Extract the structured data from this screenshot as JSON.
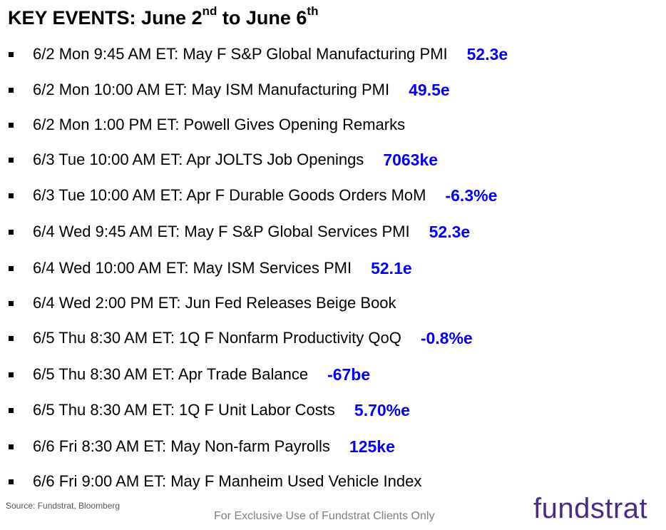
{
  "header": {
    "title_part1": "KEY EVENTS: June 2",
    "title_sup1": "nd",
    "title_part2": " to June 6",
    "title_sup2": "th"
  },
  "events": [
    {
      "text": "6/2 Mon 9:45 AM ET: May F S&P Global Manufacturing PMI",
      "value": "52.3e"
    },
    {
      "text": "6/2 Mon 10:00 AM ET: May ISM Manufacturing PMI",
      "value": "49.5e"
    },
    {
      "text": "6/2 Mon 1:00 PM ET: Powell Gives Opening Remarks",
      "value": ""
    },
    {
      "text": "6/3 Tue 10:00 AM ET: Apr JOLTS Job Openings",
      "value": "7063ke"
    },
    {
      "text": "6/3 Tue 10:00 AM ET: Apr F Durable Goods Orders MoM",
      "value": "-6.3%e"
    },
    {
      "text": "6/4 Wed 9:45 AM ET: May F S&P Global Services PMI",
      "value": "52.3e"
    },
    {
      "text": "6/4 Wed 10:00 AM ET: May ISM Services PMI",
      "value": "52.1e"
    },
    {
      "text": "6/4 Wed 2:00 PM ET: Jun Fed Releases Beige Book",
      "value": ""
    },
    {
      "text": "6/5 Thu 8:30 AM ET: 1Q F Nonfarm Productivity QoQ",
      "value": "-0.8%e"
    },
    {
      "text": "6/5 Thu 8:30 AM ET: Apr Trade Balance",
      "value": "-67be"
    },
    {
      "text": "6/5 Thu 8:30 AM ET: 1Q F Unit Labor Costs",
      "value": "5.70%e"
    },
    {
      "text": "6/6 Fri 8:30 AM ET: May Non-farm Payrolls",
      "value": "125ke"
    },
    {
      "text": "6/6 Fri 9:00 AM ET: May F Manheim Used Vehicle Index",
      "value": ""
    }
  ],
  "footer": {
    "source": "Source: Fundstrat, Bloomberg",
    "disclaimer": "For Exclusive Use of Fundstrat Clients Only",
    "logo": "fundstrat"
  },
  "colors": {
    "value_blue": "#0000ee",
    "logo_purple": "#4b2a86",
    "disclaimer_gray": "#7f7f7f"
  }
}
